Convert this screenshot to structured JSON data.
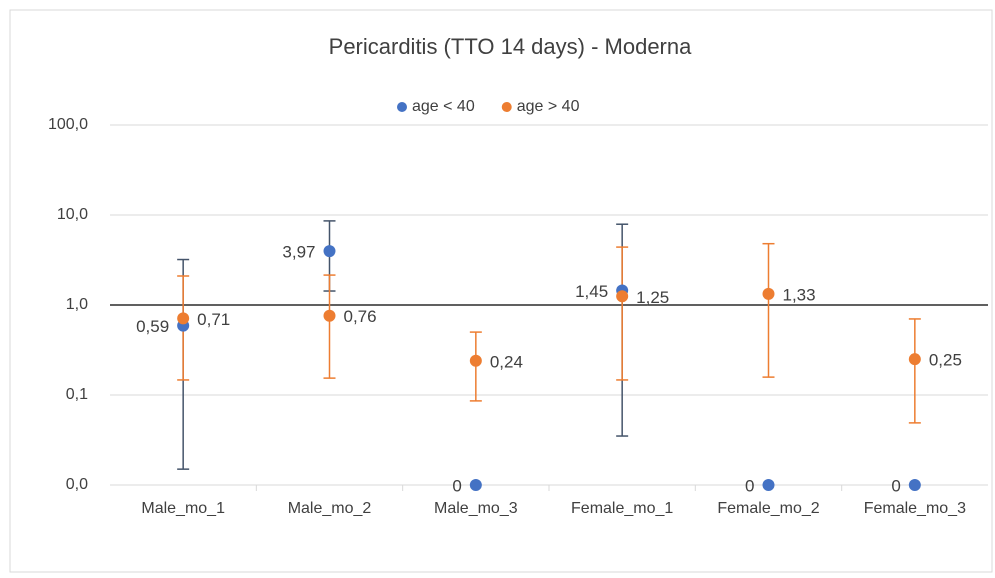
{
  "chart_data": {
    "type": "scatter",
    "title": "Pericarditis (TTO 14 days) - Moderna",
    "categories": [
      "Male_mo_1",
      "Male_mo_2",
      "Male_mo_3",
      "Female_mo_1",
      "Female_mo_2",
      "Female_mo_3"
    ],
    "log_scale": true,
    "grid": true,
    "legend": "top",
    "x_axis_crosses": 1,
    "ylim": [
      0.01,
      100
    ],
    "yticks": [
      {
        "value": 0.01,
        "label": "0,0"
      },
      {
        "value": 0.1,
        "label": "0,1"
      },
      {
        "value": 1,
        "label": "1,0"
      },
      {
        "value": 10,
        "label": "10,0"
      },
      {
        "value": 100,
        "label": "100,0"
      }
    ],
    "series": [
      {
        "name": "age < 40",
        "color": "#4472c4",
        "error_color": "#44546a",
        "label_side": "left",
        "values": [
          0.59,
          3.97,
          0,
          1.45,
          0,
          0
        ],
        "value_labels": [
          "0,59",
          "3,97",
          "0",
          "1,45",
          "0",
          "0"
        ],
        "ci_low": [
          0.015,
          1.43,
          null,
          0.035,
          null,
          null
        ],
        "ci_high": [
          3.2,
          8.6,
          null,
          7.9,
          null,
          null
        ]
      },
      {
        "name": "age > 40",
        "color": "#ed7d31",
        "error_color": "#ed7d31",
        "label_side": "right",
        "values": [
          0.71,
          0.76,
          0.24,
          1.25,
          1.33,
          0.25
        ],
        "value_labels": [
          "0,71",
          "0,76",
          "0,24",
          "1,25",
          "1,33",
          "0,25"
        ],
        "ci_low": [
          0.147,
          0.154,
          0.086,
          0.147,
          0.158,
          0.049
        ],
        "ci_high": [
          2.1,
          2.15,
          0.5,
          4.4,
          4.8,
          0.7
        ]
      }
    ]
  }
}
